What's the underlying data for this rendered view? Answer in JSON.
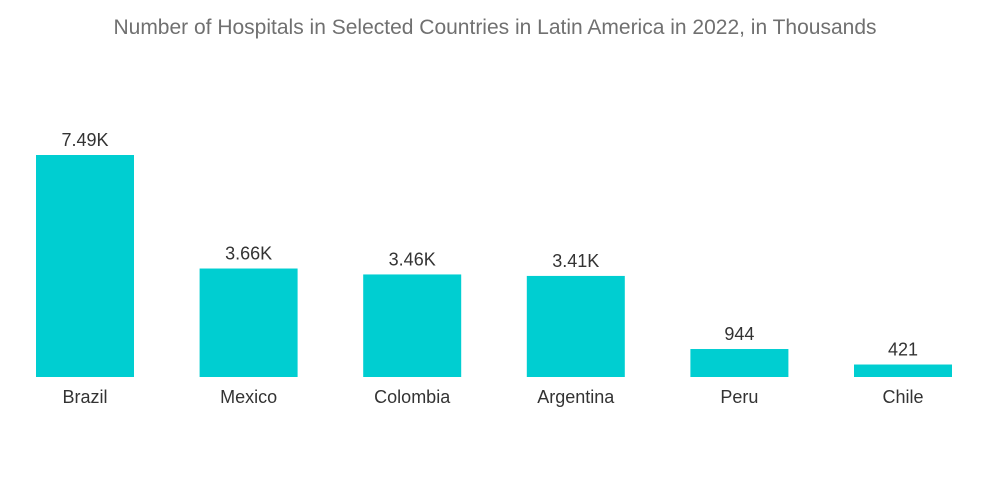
{
  "chart_data": {
    "type": "bar",
    "title": "Number of Hospitals in Selected Countries in Latin America in 2022, in Thousands",
    "categories": [
      "Brazil",
      "Mexico",
      "Colombia",
      "Argentina",
      "Peru",
      "Chile"
    ],
    "values": [
      7490,
      3660,
      3460,
      3410,
      944,
      421
    ],
    "data_labels": [
      "7.49K",
      "3.66K",
      "3.46K",
      "3.41K",
      "944",
      "421"
    ],
    "xlabel": "",
    "ylabel": "",
    "ylim": [
      0,
      7490
    ],
    "grid": false,
    "legend": "none",
    "bar_color": "#00CED1"
  }
}
